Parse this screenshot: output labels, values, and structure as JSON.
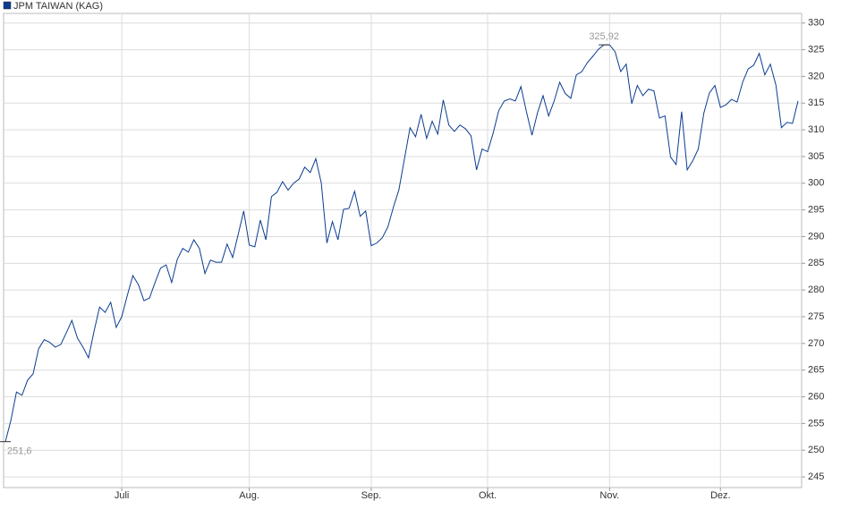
{
  "chart_data": {
    "type": "line",
    "categories": [
      null,
      null,
      null,
      null,
      null,
      null,
      null,
      null,
      null,
      null,
      null,
      null,
      null,
      null,
      null,
      null,
      null,
      null,
      null,
      null,
      null,
      "Juli",
      null,
      null,
      null,
      null,
      null,
      null,
      null,
      null,
      null,
      null,
      null,
      null,
      null,
      null,
      null,
      null,
      null,
      null,
      null,
      null,
      null,
      null,
      "Aug.",
      null,
      null,
      null,
      null,
      null,
      null,
      null,
      null,
      null,
      null,
      null,
      null,
      null,
      null,
      null,
      null,
      null,
      null,
      null,
      null,
      null,
      "Sep.",
      null,
      null,
      null,
      null,
      null,
      null,
      null,
      null,
      null,
      null,
      null,
      null,
      null,
      null,
      null,
      null,
      null,
      null,
      null,
      null,
      "Okt.",
      null,
      null,
      null,
      null,
      null,
      null,
      null,
      null,
      null,
      null,
      null,
      null,
      null,
      null,
      null,
      null,
      null,
      null,
      null,
      null,
      null,
      "Nov.",
      null,
      null,
      null,
      null,
      null,
      null,
      null,
      null,
      null,
      null,
      null,
      null,
      null,
      null,
      null,
      null,
      null,
      null,
      null,
      "Dez.",
      null,
      null,
      null,
      null,
      null,
      null,
      null,
      null,
      null,
      null,
      null,
      null,
      null,
      null
    ],
    "series": [
      {
        "name": "JPM TAIWAN (KAG)",
        "color": "#0b3d91",
        "values": [
          251.6,
          255.6,
          260.9,
          260.3,
          263.1,
          264.3,
          269.0,
          270.7,
          270.2,
          269.3,
          269.8,
          272.0,
          274.3,
          271.0,
          269.3,
          267.3,
          272.3,
          276.8,
          275.8,
          277.7,
          273.0,
          275.0,
          279.0,
          282.7,
          281.0,
          278.0,
          278.5,
          281.4,
          284.1,
          284.7,
          281.4,
          285.7,
          287.8,
          287.1,
          289.4,
          287.8,
          283.1,
          285.6,
          285.2,
          285.2,
          288.6,
          286.1,
          290.4,
          294.8,
          288.4,
          288.1,
          293.1,
          289.4,
          297.5,
          298.3,
          300.3,
          298.7,
          300.0,
          300.8,
          303.0,
          302.0,
          304.6,
          300.0,
          288.8,
          292.8,
          289.4,
          295.1,
          295.3,
          298.5,
          293.8,
          294.8,
          288.3,
          288.8,
          289.8,
          291.8,
          295.5,
          298.8,
          304.6,
          310.4,
          308.7,
          312.9,
          308.4,
          311.6,
          309.2,
          315.6,
          310.9,
          309.7,
          310.9,
          310.2,
          308.9,
          302.5,
          306.4,
          305.9,
          309.4,
          313.6,
          315.4,
          315.8,
          315.4,
          318.1,
          313.4,
          309.0,
          313.2,
          316.4,
          312.6,
          315.4,
          318.9,
          316.8,
          315.9,
          320.3,
          320.9,
          322.6,
          323.8,
          325.1,
          325.92,
          325.92,
          324.6,
          320.9,
          322.3,
          314.9,
          318.3,
          316.4,
          317.6,
          317.3,
          312.2,
          312.6,
          304.9,
          303.5,
          313.4,
          302.5,
          304.2,
          306.4,
          313.1,
          316.9,
          318.3,
          314.2,
          314.7,
          315.7,
          315.2,
          318.9,
          321.4,
          322.1,
          324.3,
          320.3,
          322.3,
          318.4,
          310.4,
          311.4,
          311.2,
          315.4
        ]
      }
    ],
    "annotations": [
      {
        "value": 251.6,
        "label": "251,6"
      },
      {
        "value": 325.92,
        "label": "325,92"
      }
    ],
    "ylim": [
      243,
      331.8
    ],
    "yticks": [
      245,
      250,
      255,
      260,
      265,
      270,
      275,
      280,
      285,
      290,
      295,
      300,
      305,
      310,
      315,
      320,
      325,
      330
    ],
    "grid": true
  }
}
